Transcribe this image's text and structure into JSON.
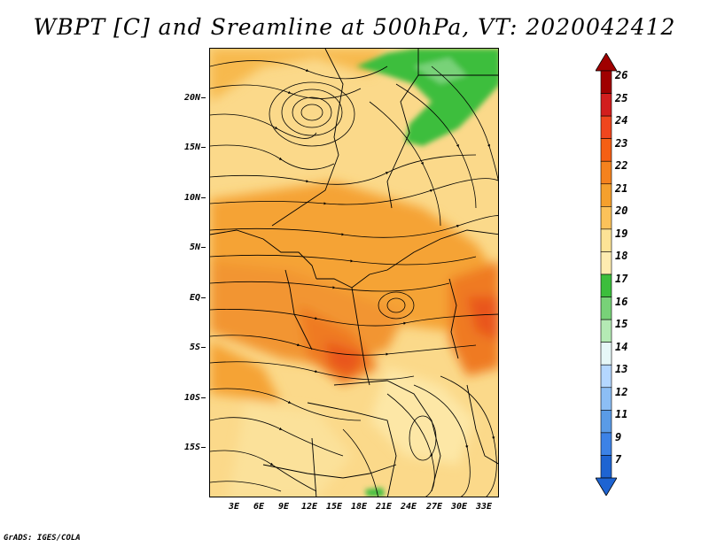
{
  "title": "WBPT [C] and Sreamline at 500hPa, VT: 2020042412",
  "credit": "GrADS: IGES/COLA",
  "map": {
    "y_axis_labels": [
      "20N",
      "15N",
      "10N",
      "5N",
      "EQ",
      "5S",
      "10S",
      "15S"
    ],
    "x_axis_labels": [
      "3E",
      "6E",
      "9E",
      "12E",
      "15E",
      "18E",
      "21E",
      "24E",
      "27E",
      "30E",
      "33E"
    ],
    "base_color": "#fbd98a"
  },
  "colorbar": {
    "levels": [
      "26",
      "25",
      "24",
      "23",
      "22",
      "21",
      "20",
      "19",
      "18",
      "17",
      "16",
      "15",
      "14",
      "13",
      "12",
      "11",
      "9",
      "7"
    ],
    "colors": [
      "#a00000",
      "#d21e1e",
      "#f0461e",
      "#f55f14",
      "#f5821e",
      "#f5a02d",
      "#fcc25a",
      "#fde396",
      "#feecb0",
      "#3cbe3c",
      "#78d278",
      "#b4eab4",
      "#e6f7f7",
      "#b4d7ff",
      "#8cbef5",
      "#5a9be6",
      "#3c82e6",
      "#1e64d2"
    ]
  }
}
